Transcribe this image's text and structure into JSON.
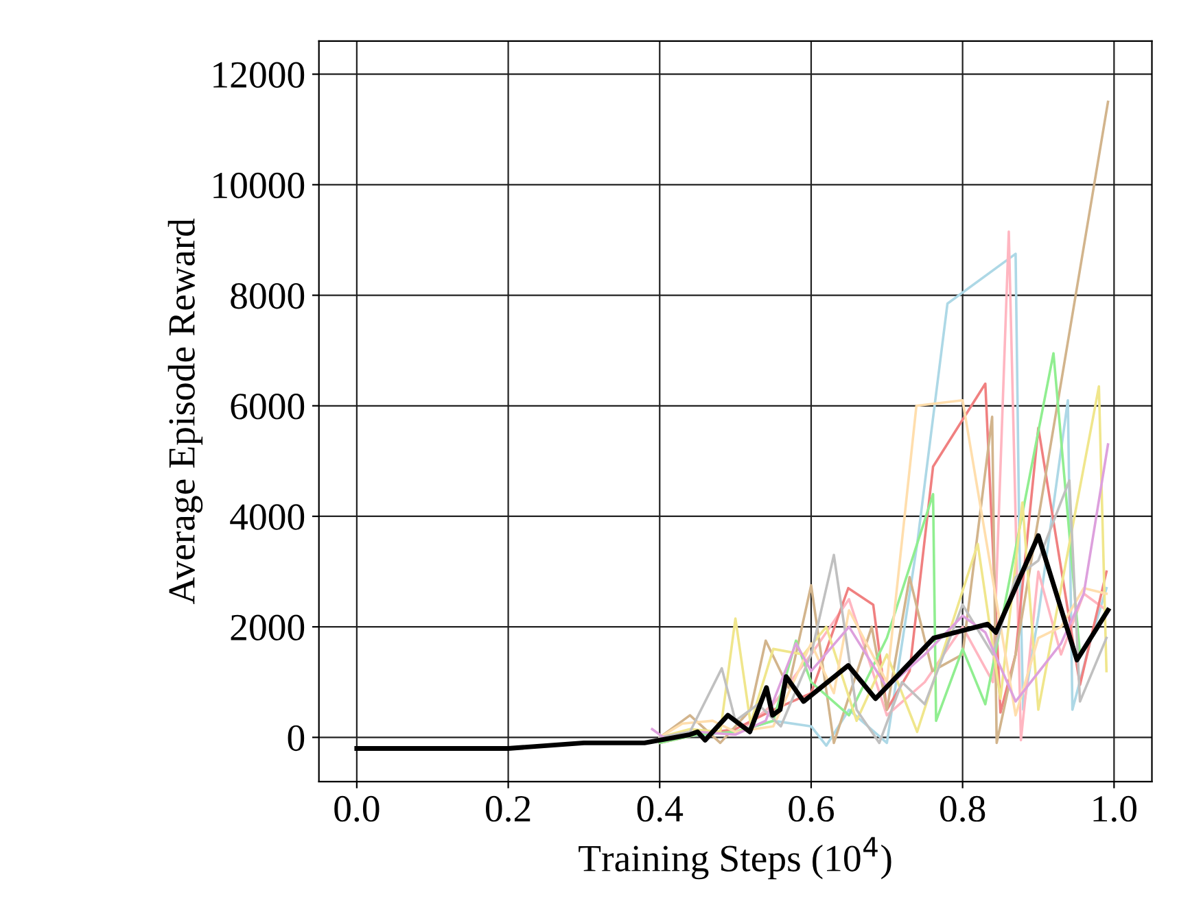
{
  "chart_data": {
    "type": "line",
    "xlabel": "Training Steps (10$^{4}$)",
    "ylabel": "Average Episode Reward",
    "xlim": [
      -0.05,
      1.05
    ],
    "ylim": [
      -800,
      12600
    ],
    "xticks": [
      {
        "value": 0,
        "label": "0.0"
      },
      {
        "value": 0.2,
        "label": "0.2"
      },
      {
        "value": 0.4,
        "label": "0.4"
      },
      {
        "value": 0.6,
        "label": "0.6"
      },
      {
        "value": 0.8,
        "label": "0.8"
      },
      {
        "value": 1.0,
        "label": "1.0"
      }
    ],
    "yticks": [
      0,
      2000,
      4000,
      6000,
      8000,
      10000,
      12000
    ],
    "grid": true,
    "legend": false,
    "marker": "none",
    "line_style": "solid",
    "series": [
      {
        "color": "#add8e6",
        "x": [
          0.38,
          0.42,
          0.46,
          0.5,
          0.55,
          0.6,
          0.62,
          0.65,
          0.7,
          0.74,
          0.78,
          0.87,
          0.875,
          0.88,
          0.9,
          0.939,
          0.945,
          0.97,
          0.99
        ],
        "values": [
          -100,
          0,
          50,
          100,
          300,
          200,
          -150,
          500,
          -100,
          3500,
          7850,
          8750,
          3500,
          500,
          2200,
          6100,
          500,
          1800,
          2700
        ]
      },
      {
        "color": "#ffb6c1",
        "x": [
          0.4,
          0.45,
          0.5,
          0.55,
          0.6,
          0.65,
          0.7,
          0.75,
          0.8,
          0.84,
          0.861,
          0.877,
          0.9,
          0.93,
          0.96,
          0.99
        ],
        "values": [
          0,
          100,
          50,
          600,
          1500,
          2500,
          400,
          1000,
          2000,
          1000,
          9150,
          -50,
          3000,
          1500,
          2600,
          2300
        ]
      },
      {
        "color": "#f08080",
        "x": [
          0.4,
          0.45,
          0.5,
          0.55,
          0.6,
          0.649,
          0.682,
          0.7,
          0.73,
          0.761,
          0.83,
          0.85,
          0.87,
          0.9,
          0.955,
          0.99
        ],
        "values": [
          -100,
          50,
          150,
          500,
          800,
          2700,
          2400,
          500,
          1200,
          4900,
          6400,
          450,
          1500,
          5600,
          950,
          3000
        ]
      },
      {
        "color": "#d2b48c",
        "x": [
          0.4,
          0.44,
          0.48,
          0.52,
          0.54,
          0.57,
          0.6,
          0.63,
          0.68,
          0.7,
          0.73,
          0.76,
          0.8,
          0.839,
          0.845,
          0.87,
          0.992
        ],
        "values": [
          0,
          400,
          -100,
          500,
          1750,
          900,
          2750,
          -100,
          2000,
          500,
          2900,
          1200,
          1500,
          5800,
          -100,
          1500,
          11500
        ]
      },
      {
        "color": "#90ee90",
        "x": [
          0.4,
          0.45,
          0.5,
          0.55,
          0.58,
          0.6,
          0.65,
          0.7,
          0.761,
          0.765,
          0.8,
          0.83,
          0.85,
          0.92,
          0.955,
          0.99
        ],
        "values": [
          -100,
          50,
          100,
          300,
          1750,
          1000,
          400,
          1800,
          4400,
          300,
          1600,
          600,
          2000,
          6950,
          1500,
          2300
        ]
      },
      {
        "color": "#f0e68c",
        "x": [
          0.4,
          0.44,
          0.48,
          0.5,
          0.52,
          0.55,
          0.59,
          0.62,
          0.66,
          0.7,
          0.74,
          0.78,
          0.82,
          0.85,
          0.879,
          0.9,
          0.93,
          0.98,
          0.99
        ],
        "values": [
          0,
          150,
          100,
          2150,
          250,
          1600,
          1500,
          2000,
          300,
          1500,
          100,
          1800,
          3500,
          700,
          4250,
          500,
          2700,
          6350,
          1200
        ]
      },
      {
        "color": "#ffdead",
        "x": [
          0.4,
          0.43,
          0.47,
          0.5,
          0.55,
          0.6,
          0.63,
          0.65,
          0.7,
          0.739,
          0.8,
          0.87,
          0.9,
          0.93,
          0.96,
          0.99
        ],
        "values": [
          0,
          250,
          300,
          100,
          200,
          1700,
          800,
          2300,
          1000,
          6000,
          6100,
          400,
          1800,
          2000,
          2700,
          2600
        ]
      },
      {
        "color": "#c0c0c0",
        "x": [
          0.4,
          0.44,
          0.482,
          0.5,
          0.53,
          0.56,
          0.6,
          0.63,
          0.66,
          0.69,
          0.72,
          0.75,
          0.8,
          0.84,
          0.87,
          0.9,
          0.941,
          0.955,
          0.99
        ],
        "values": [
          0,
          100,
          1250,
          300,
          600,
          200,
          1500,
          3300,
          500,
          -100,
          1000,
          600,
          2400,
          1500,
          2900,
          3200,
          4650,
          650,
          1800
        ]
      },
      {
        "color": "#dda0dd",
        "x": [
          0.39,
          0.41,
          0.45,
          0.5,
          0.54,
          0.58,
          0.6,
          0.65,
          0.7,
          0.75,
          0.8,
          0.83,
          0.87,
          0.93,
          0.96,
          0.992
        ],
        "values": [
          150,
          -50,
          100,
          50,
          300,
          1700,
          1200,
          2000,
          900,
          1500,
          2200,
          1900,
          650,
          1700,
          2600,
          5300
        ]
      },
      {
        "color": "#000000",
        "x": [
          0,
          0.1,
          0.2,
          0.3,
          0.35,
          0.38,
          0.4,
          0.42,
          0.44,
          0.45,
          0.46,
          0.49,
          0.519,
          0.541,
          0.549,
          0.559,
          0.567,
          0.59,
          0.649,
          0.685,
          0.762,
          0.833,
          0.844,
          0.9,
          0.951,
          0.992
        ],
        "values": [
          -200,
          -200,
          -200,
          -100,
          -100,
          -100,
          -50,
          0,
          50,
          100,
          -50,
          400,
          100,
          900,
          400,
          500,
          1100,
          650,
          1300,
          700,
          1800,
          2050,
          1900,
          3650,
          1400,
          2300
        ]
      }
    ]
  }
}
